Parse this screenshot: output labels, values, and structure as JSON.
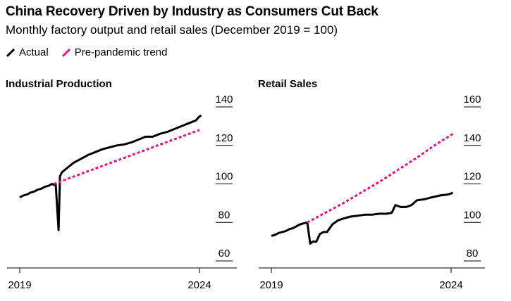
{
  "title": "China Recovery Driven by Industry as Consumers Cut Back",
  "subtitle": "Monthly factory output and retail sales (December 2019 = 100)",
  "legend": {
    "actual": "Actual",
    "trend": "Pre-pandemic trend"
  },
  "colors": {
    "actual": "#000000",
    "trend": "#e4138a",
    "axis": "#000000"
  },
  "chart_data": [
    {
      "type": "line",
      "title": "Industrial Production",
      "x_ticks": [
        2019,
        2024
      ],
      "x_tick_labels": [
        "2019",
        "2024"
      ],
      "xlim": [
        2019,
        2024
      ],
      "y_ticks": [
        60,
        80,
        100,
        120,
        140
      ],
      "ylim": [
        60,
        140
      ],
      "y_axis_side": "right",
      "series": [
        {
          "name": "Actual",
          "style": "solid",
          "x": [
            2019.0,
            2019.1,
            2019.2,
            2019.3,
            2019.4,
            2019.5,
            2019.6,
            2019.7,
            2019.8,
            2019.9,
            2019.95,
            2020.0,
            2020.08,
            2020.12,
            2020.17,
            2020.3,
            2020.5,
            2020.7,
            2020.9,
            2021.1,
            2021.3,
            2021.5,
            2021.7,
            2021.9,
            2022.1,
            2022.3,
            2022.5,
            2022.7,
            2022.9,
            2023.1,
            2023.3,
            2023.5,
            2023.7,
            2023.9,
            2024.0,
            2024.05
          ],
          "values": [
            93,
            94,
            94.5,
            95.5,
            96,
            97,
            97.5,
            98.5,
            99,
            100,
            99.5,
            100,
            76,
            104,
            106,
            108,
            111,
            113,
            115,
            116.5,
            118,
            119,
            120,
            120.5,
            121.5,
            123,
            124.5,
            124.5,
            126,
            127,
            128.5,
            130,
            131.5,
            133,
            135,
            135.5
          ]
        },
        {
          "name": "Pre-pandemic trend",
          "style": "dashed",
          "x": [
            2019.95,
            2024.0
          ],
          "values": [
            100,
            128
          ]
        }
      ]
    },
    {
      "type": "line",
      "title": "Retail Sales",
      "x_ticks": [
        2019,
        2024
      ],
      "x_tick_labels": [
        "2019",
        "2024"
      ],
      "xlim": [
        2019,
        2024
      ],
      "y_ticks": [
        80,
        100,
        120,
        140,
        160
      ],
      "ylim": [
        80,
        160
      ],
      "y_axis_side": "right",
      "series": [
        {
          "name": "Actual",
          "style": "solid",
          "x": [
            2019.0,
            2019.1,
            2019.2,
            2019.3,
            2019.4,
            2019.5,
            2019.6,
            2019.7,
            2019.8,
            2019.9,
            2020.0,
            2020.08,
            2020.15,
            2020.25,
            2020.35,
            2020.45,
            2020.55,
            2020.7,
            2020.85,
            2021.0,
            2021.2,
            2021.4,
            2021.6,
            2021.8,
            2022.0,
            2022.2,
            2022.35,
            2022.45,
            2022.6,
            2022.75,
            2022.9,
            2023.05,
            2023.25,
            2023.45,
            2023.7,
            2023.9,
            2024.0,
            2024.05
          ],
          "values": [
            93,
            93.5,
            94.5,
            95,
            95.5,
            96.5,
            97,
            98,
            99,
            99.5,
            100,
            89,
            90,
            90,
            94,
            95,
            95,
            99,
            101,
            102,
            103,
            103.5,
            104,
            104,
            104.5,
            104.5,
            105,
            109,
            108,
            108,
            109,
            111.5,
            112,
            113,
            114,
            114.5,
            115,
            115.5
          ]
        },
        {
          "name": "Pre-pandemic trend",
          "style": "dashed",
          "x": [
            2020.0,
            2020.5,
            2021.0,
            2021.5,
            2022.0,
            2022.5,
            2023.0,
            2023.5,
            2024.05
          ],
          "values": [
            100,
            105,
            110,
            115.5,
            121,
            127,
            133,
            139.5,
            146
          ]
        }
      ]
    }
  ]
}
